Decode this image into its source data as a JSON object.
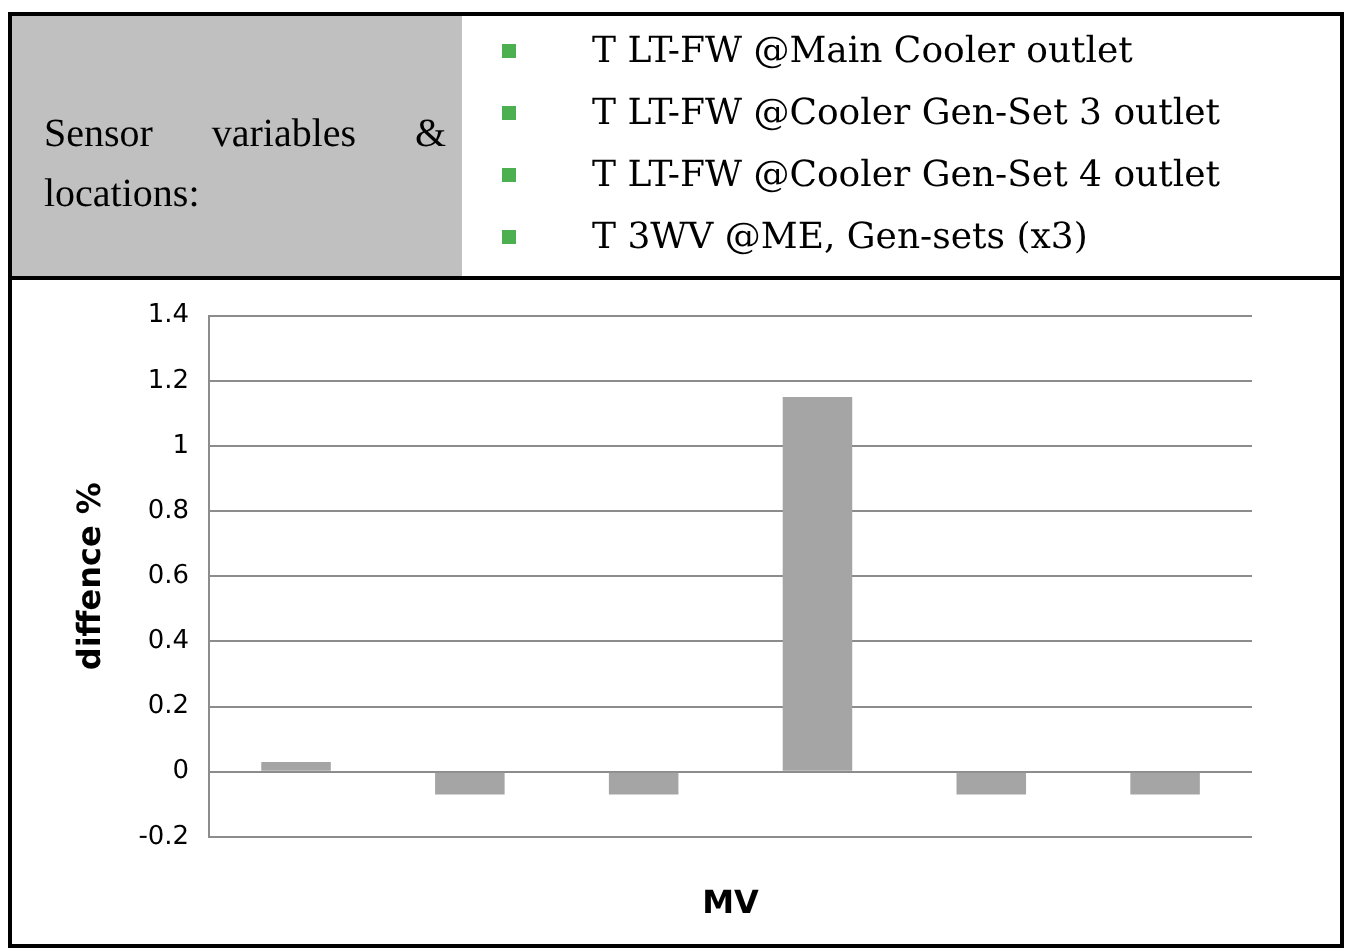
{
  "chart_data": {
    "type": "bar",
    "ylabel": "diffence %",
    "xlabel": "MV",
    "categories": [
      null,
      null,
      null,
      null,
      null,
      null
    ],
    "values": [
      0.03,
      -0.07,
      -0.07,
      1.15,
      -0.07,
      -0.07
    ],
    "color": "#a5a5a5",
    "ylim": [
      -0.2,
      1.4
    ],
    "yticks": [
      -0.2,
      0,
      0.2,
      0.4,
      0.6,
      0.8,
      1,
      1.2,
      1.4
    ],
    "grid": "y",
    "legend": false,
    "annotations": [
      "Sensor variables & locations:",
      "T LT-FW @Main Cooler outlet",
      "T LT-FW @Cooler Gen-Set 3 outlet",
      "T LT-FW @Cooler Gen-Set 4 outlet",
      "T 3WV @ME, Gen-sets (x3)"
    ]
  }
}
